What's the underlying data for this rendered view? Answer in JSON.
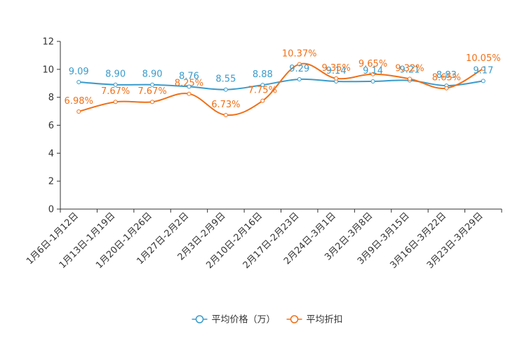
{
  "chart_data": {
    "type": "line",
    "title": "",
    "xlabel": "",
    "ylabel": "",
    "ylim": [
      0,
      12
    ],
    "yticks": [
      0,
      2,
      4,
      6,
      8,
      10,
      12
    ],
    "ytick_labels": [
      "0",
      "2",
      "4",
      "6",
      "8",
      "10",
      "12"
    ],
    "grid": false,
    "legend_position": "bottom-center",
    "categories": [
      "1月6日-1月12日",
      "1月13日-1月19日",
      "1月20日-1月26日",
      "1月27日-2月2日",
      "2月3日-2月9日",
      "2月10日-2月16日",
      "2月17日-2月23日",
      "2月24日-3月1日",
      "3月2日-3月8日",
      "3月9日-3月15日",
      "3月16日-3月22日",
      "3月23日-3月29日"
    ],
    "series": [
      {
        "name": "平均价格（万）",
        "color": "#3A9BCB",
        "values": [
          9.09,
          8.9,
          8.9,
          8.76,
          8.55,
          8.88,
          9.29,
          9.14,
          9.14,
          9.21,
          8.83,
          9.17
        ],
        "labels": [
          "9.09",
          "8.90",
          "8.90",
          "8.76",
          "8.55",
          "8.88",
          "9.29",
          "9.14",
          "9.14",
          "9.21",
          "8.83",
          "9.17"
        ]
      },
      {
        "name": "平均折扣",
        "color": "#F07018",
        "values": [
          6.98,
          7.67,
          7.67,
          8.25,
          6.73,
          7.75,
          10.37,
          9.35,
          9.65,
          9.32,
          8.65,
          10.05
        ],
        "labels": [
          "6.98%",
          "7.67%",
          "7.67%",
          "8.25%",
          "6.73%",
          "7.75%",
          "10.37%",
          "9.35%",
          "9.65%",
          "9.32%",
          "8.65%",
          "10.05%"
        ]
      }
    ]
  }
}
